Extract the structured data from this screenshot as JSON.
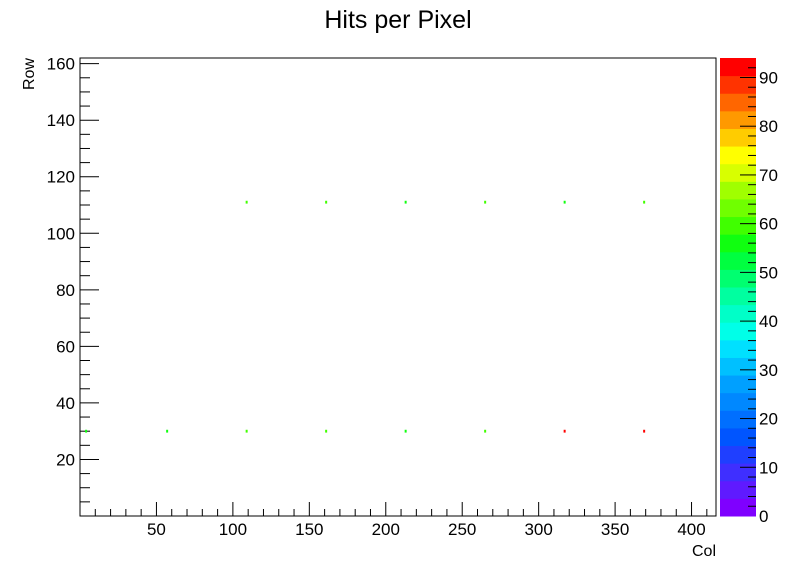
{
  "chart_data": {
    "type": "heatmap",
    "title": "Hits per Pixel",
    "xlabel": "Col",
    "ylabel": "Row",
    "xlim": [
      0,
      416
    ],
    "ylim": [
      0,
      162
    ],
    "x_ticks": [
      50,
      100,
      150,
      200,
      250,
      300,
      350,
      400
    ],
    "y_ticks": [
      20,
      40,
      60,
      80,
      100,
      120,
      140,
      160
    ],
    "grid": false,
    "colorbar": {
      "min": 0,
      "max": 94,
      "ticks": [
        0,
        10,
        20,
        30,
        40,
        50,
        60,
        70,
        80,
        90
      ],
      "palette": [
        "#7f00ff",
        "#5f1aff",
        "#3f2fff",
        "#1f3fff",
        "#0055ff",
        "#006fff",
        "#0088ff",
        "#00a0ff",
        "#00c0ff",
        "#00e0ff",
        "#00ffe8",
        "#00ffc8",
        "#00ffa0",
        "#00ff70",
        "#00ff40",
        "#10ff10",
        "#40ff00",
        "#70ff00",
        "#a0ff00",
        "#d8ff00",
        "#ffff00",
        "#ffcc00",
        "#ff9900",
        "#ff6600",
        "#ff3300",
        "#ff0000"
      ]
    },
    "points": [
      {
        "x": 4,
        "y": 30,
        "value": 55
      },
      {
        "x": 57,
        "y": 30,
        "value": 55
      },
      {
        "x": 109,
        "y": 30,
        "value": 60
      },
      {
        "x": 161,
        "y": 30,
        "value": 60
      },
      {
        "x": 213,
        "y": 30,
        "value": 55
      },
      {
        "x": 265,
        "y": 30,
        "value": 60
      },
      {
        "x": 317,
        "y": 30,
        "value": 92
      },
      {
        "x": 369,
        "y": 30,
        "value": 92
      },
      {
        "x": 109,
        "y": 111,
        "value": 60
      },
      {
        "x": 161,
        "y": 111,
        "value": 60
      },
      {
        "x": 213,
        "y": 111,
        "value": 55
      },
      {
        "x": 265,
        "y": 111,
        "value": 60
      },
      {
        "x": 317,
        "y": 111,
        "value": 55
      },
      {
        "x": 369,
        "y": 111,
        "value": 60
      }
    ]
  }
}
